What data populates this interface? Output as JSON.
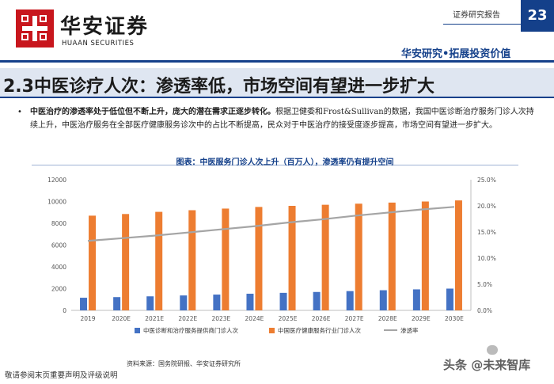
{
  "header": {
    "brand_cn": "华安证券",
    "brand_en": "HUAAN SECURITIES",
    "report_label": "证券研究报告",
    "page_number": "23",
    "slogan": "华安研究•拓展投资价值",
    "accent_color": "#14408a",
    "logo_color": "#c8161d"
  },
  "title": "2.3中医诊疗人次：渗透率低，市场空间有望进一步扩大",
  "paragraph": {
    "bold": "中医治疗的渗透率处于低位但不断上升，庞大的潜在需求正逐步转化。",
    "normal": "根据卫健委和Frost&Sullivan的数据，我国中医诊断治疗服务门诊人次持续上升，中医治疗服务在全部医疗健康服务诊次中的占比不断提高，民众对于中医治疗的接受度逐步提高，市场空间有望进一步扩大。"
  },
  "figure_title": "图表：中医服务门诊人次上升（百万人），渗透率仍有提升空间",
  "chart_data": {
    "type": "bar",
    "categories": [
      "2019",
      "2020E",
      "2021E",
      "2022E",
      "2023E",
      "2024E",
      "2025E",
      "2026E",
      "2027E",
      "2028E",
      "2029E",
      "2030E"
    ],
    "series": [
      {
        "name": "中医诊断和治疗服务提供商门诊人次",
        "type": "bar",
        "axis": "left",
        "color": "#4472c4",
        "values": [
          1160,
          1220,
          1290,
          1370,
          1450,
          1530,
          1610,
          1690,
          1770,
          1850,
          1930,
          2000
        ]
      },
      {
        "name": "中国医疗健康服务行业门诊人次",
        "type": "bar",
        "axis": "left",
        "color": "#ed7d31",
        "values": [
          8700,
          8850,
          9050,
          9200,
          9350,
          9500,
          9600,
          9700,
          9800,
          9900,
          10000,
          10100
        ]
      },
      {
        "name": "渗透率",
        "type": "line",
        "axis": "right",
        "color": "#a5a5a5",
        "values": [
          13.3,
          13.8,
          14.3,
          14.9,
          15.5,
          16.1,
          16.8,
          17.4,
          18.1,
          18.7,
          19.3,
          19.8
        ]
      }
    ],
    "ylim_left": [
      0,
      12000
    ],
    "yticks_left": [
      "0",
      "2000",
      "4000",
      "6000",
      "8000",
      "10000",
      "12000"
    ],
    "ylim_right": [
      0,
      25
    ],
    "yticks_right": [
      "0.0%",
      "5.0%",
      "10.0%",
      "15.0%",
      "20.0%",
      "25.0%"
    ],
    "legend_position": "bottom",
    "grid": false
  },
  "source": "资料来源：国务院研报、华安证券研究所",
  "disclaimer": "敬请参阅末页重要声明及评级说明",
  "watermark": "头条 @未来智库"
}
